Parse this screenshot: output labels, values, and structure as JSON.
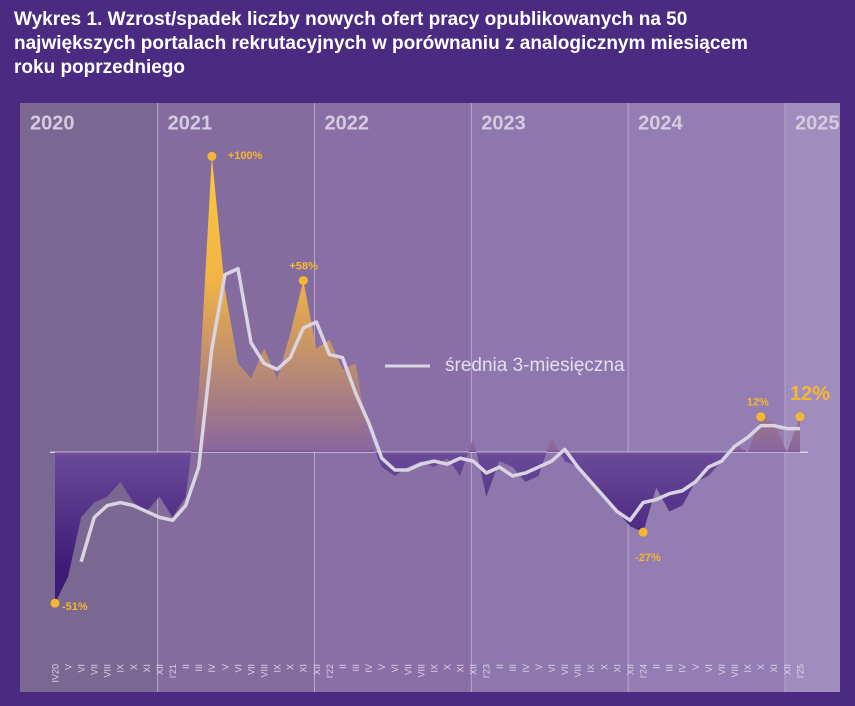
{
  "chart_data": {
    "type": "area",
    "title": "Wykres 1. Wzrost/spadek liczby nowych ofert pracy opublikowanych na 50 największych portalach rekrutacyjnych w porównaniu z analogicznym miesiącem roku poprzedniego",
    "x_groups": [
      "2020",
      "2021",
      "2022",
      "2023",
      "2024",
      "2025"
    ],
    "categories": [
      "IV20",
      "V",
      "VI",
      "VII",
      "VIII",
      "IX",
      "X",
      "XI",
      "XII",
      "I'21",
      "II",
      "III",
      "IV",
      "V",
      "VI",
      "VII",
      "VIII",
      "IX",
      "X",
      "XI",
      "XII",
      "I'22",
      "II",
      "III",
      "IV",
      "V",
      "VI",
      "VII",
      "VIII",
      "IX",
      "X",
      "XI",
      "XII",
      "I'23",
      "II",
      "III",
      "IV",
      "V",
      "VI",
      "VII",
      "VIII",
      "IX",
      "X",
      "XI",
      "XII",
      "I'24",
      "II",
      "III",
      "IV",
      "V",
      "VI",
      "VII",
      "VIII",
      "IX",
      "X",
      "XI",
      "XII",
      "I'25"
    ],
    "series": [
      {
        "values": [
          -51,
          -42,
          -22,
          -17,
          -15,
          -10,
          -17,
          -20,
          -15,
          -22,
          -15,
          20,
          100,
          55,
          30,
          25,
          35,
          25,
          40,
          58,
          35,
          38,
          28,
          30,
          5,
          -5,
          -8,
          -5,
          -3,
          -5,
          -2,
          -8,
          5,
          -15,
          -3,
          -5,
          -10,
          -8,
          5,
          -3,
          -5,
          -10,
          -15,
          -20,
          -25,
          -27,
          -12,
          -20,
          -18,
          -10,
          -8,
          -3,
          3,
          0,
          12,
          10,
          0,
          12
        ],
        "value_labels": [
          "-51%",
          null,
          null,
          null,
          null,
          null,
          null,
          null,
          null,
          null,
          null,
          null,
          "+100%",
          null,
          null,
          null,
          null,
          null,
          null,
          "+58%",
          null,
          null,
          null,
          null,
          null,
          null,
          null,
          null,
          null,
          null,
          null,
          null,
          null,
          null,
          null,
          null,
          null,
          null,
          null,
          null,
          null,
          null,
          null,
          null,
          null,
          "-27%",
          null,
          null,
          null,
          null,
          null,
          null,
          null,
          null,
          "12%",
          null,
          null,
          "12%"
        ]
      },
      {
        "name": "średnia 3-miesięczna",
        "type": "line",
        "color": "#d9d3e2",
        "values": [
          null,
          null,
          -37,
          -22,
          -18,
          -17,
          -18,
          -20,
          -22,
          -23,
          -18,
          -5,
          35,
          60,
          62,
          37,
          30,
          28,
          32,
          42,
          44,
          33,
          32,
          20,
          10,
          -2,
          -6,
          -6,
          -4,
          -3,
          -4,
          -2,
          -3,
          -7,
          -5,
          -8,
          -7,
          -5,
          -3,
          1,
          -5,
          -10,
          -15,
          -20,
          -23,
          -17,
          -16,
          -14,
          -13,
          -10,
          -5,
          -3,
          2,
          5,
          9,
          9,
          8,
          8
        ]
      }
    ],
    "ylim": [
      -81,
      118
    ]
  }
}
